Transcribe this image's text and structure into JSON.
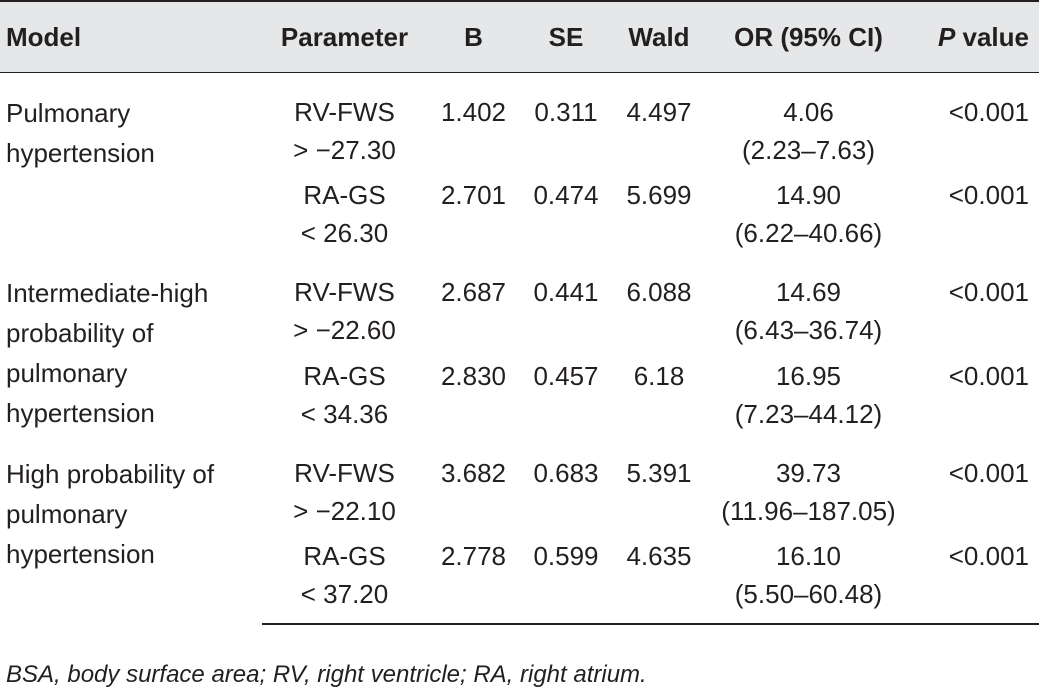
{
  "table": {
    "headers": {
      "model": "Model",
      "parameter": "Parameter",
      "b": "B",
      "se": "SE",
      "wald": "Wald",
      "or": "OR (95% CI)",
      "p_italic": "P",
      "p_rest": " value"
    },
    "groups": [
      {
        "model_lines": [
          "Pulmonary",
          "hypertension"
        ],
        "rows": [
          {
            "param1": "RV-FWS",
            "param2": "> −27.30",
            "b": "1.402",
            "se": "0.311",
            "wald": "4.497",
            "or": "4.06",
            "ci": "(2.23–7.63)",
            "p": "<0.001"
          },
          {
            "param1": "RA-GS",
            "param2": "< 26.30",
            "b": "2.701",
            "se": "0.474",
            "wald": "5.699",
            "or": "14.90",
            "ci": "(6.22–40.66)",
            "p": "<0.001"
          }
        ]
      },
      {
        "model_lines": [
          "Intermediate-high",
          "probability of",
          "pulmonary",
          "hypertension"
        ],
        "rows": [
          {
            "param1": "RV-FWS",
            "param2": "> −22.60",
            "b": "2.687",
            "se": "0.441",
            "wald": "6.088",
            "or": "14.69",
            "ci": "(6.43–36.74)",
            "p": "<0.001"
          },
          {
            "param1": "RA-GS",
            "param2": "< 34.36",
            "b": "2.830",
            "se": "0.457",
            "wald": "6.18",
            "or": "16.95",
            "ci": "(7.23–44.12)",
            "p": "<0.001"
          }
        ]
      },
      {
        "model_lines": [
          "High probability of",
          "pulmonary",
          "hypertension"
        ],
        "rows": [
          {
            "param1": "RV-FWS",
            "param2": "> −22.10",
            "b": "3.682",
            "se": "0.683",
            "wald": "5.391",
            "or": "39.73",
            "ci": "(11.96–187.05)",
            "p": "<0.001"
          },
          {
            "param1": "RA-GS",
            "param2": "< 37.20",
            "b": "2.778",
            "se": "0.599",
            "wald": "4.635",
            "or": "16.10",
            "ci": "(5.50–60.48)",
            "p": "<0.001"
          }
        ]
      }
    ]
  },
  "footnote": "BSA, body surface area; RV, right ventricle; RA, right atrium."
}
